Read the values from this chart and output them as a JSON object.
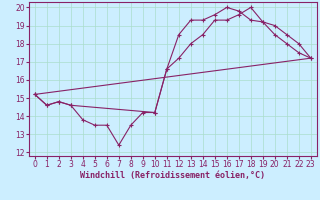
{
  "xlabel": "Windchill (Refroidissement éolien,°C)",
  "bg_color": "#cceeff",
  "grid_color": "#aaddcc",
  "line_color": "#882266",
  "xlim": [
    -0.5,
    23.5
  ],
  "ylim": [
    11.8,
    20.3
  ],
  "xticks": [
    0,
    1,
    2,
    3,
    4,
    5,
    6,
    7,
    8,
    9,
    10,
    11,
    12,
    13,
    14,
    15,
    16,
    17,
    18,
    19,
    20,
    21,
    22,
    23
  ],
  "yticks": [
    12,
    13,
    14,
    15,
    16,
    17,
    18,
    19,
    20
  ],
  "line1_x": [
    0,
    1,
    2,
    3,
    4,
    5,
    6,
    7,
    8,
    9,
    10,
    11,
    12,
    13,
    14,
    15,
    16,
    17,
    18,
    19,
    20,
    21,
    22,
    23
  ],
  "line1_y": [
    15.2,
    14.6,
    14.8,
    14.6,
    13.8,
    13.5,
    13.5,
    12.4,
    13.5,
    14.2,
    14.2,
    16.6,
    18.5,
    19.3,
    19.3,
    19.6,
    20.0,
    19.8,
    19.3,
    19.2,
    18.5,
    18.0,
    17.5,
    17.2
  ],
  "line2_x": [
    0,
    1,
    2,
    3,
    10,
    11,
    12,
    13,
    14,
    15,
    16,
    17,
    18,
    19,
    20,
    21,
    22,
    23
  ],
  "line2_y": [
    15.2,
    14.6,
    14.8,
    14.6,
    14.2,
    16.6,
    17.2,
    18.0,
    18.5,
    19.3,
    19.3,
    19.6,
    20.0,
    19.2,
    19.0,
    18.5,
    18.0,
    17.2
  ],
  "line3_x": [
    0,
    23
  ],
  "line3_y": [
    15.2,
    17.2
  ],
  "fontsize_xlabel": 6,
  "fontsize_tick": 5.5
}
